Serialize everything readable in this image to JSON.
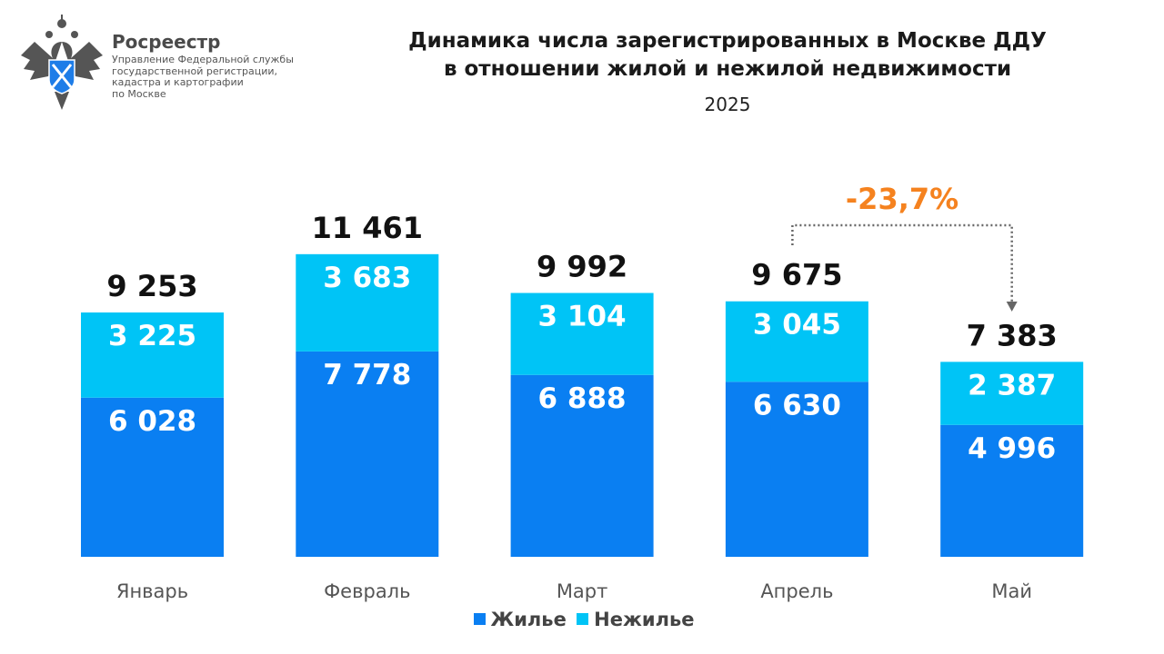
{
  "header": {
    "brand": "Росреестр",
    "subtitle_lines": [
      "Управление Федеральной службы",
      "государственной регистрации,",
      "кадастра и картографии",
      "по Москве"
    ],
    "logo_icon": "double-headed-eagle-emblem"
  },
  "chart_data": {
    "type": "bar",
    "stacked": true,
    "title_lines": [
      "Динамика числа зарегистрированных в Москве ДДУ",
      "в отношении жилой и нежилой недвижимости"
    ],
    "subtitle": "2025",
    "categories": [
      "Январь",
      "Февраль",
      "Март",
      "Апрель",
      "Май"
    ],
    "series": [
      {
        "name": "Жилье",
        "values": [
          6028,
          7778,
          6888,
          6630,
          4996
        ],
        "labels": [
          "6 028",
          "7 778",
          "6 888",
          "6 630",
          "4 996"
        ],
        "color": "#0a7ff2"
      },
      {
        "name": "Нежилье",
        "values": [
          3225,
          3683,
          3104,
          3045,
          2387
        ],
        "labels": [
          "3 225",
          "3 683",
          "3 104",
          "3 045",
          "2 387"
        ],
        "color": "#00c4f6"
      }
    ],
    "totals": [
      9253,
      11461,
      9992,
      9675,
      7383
    ],
    "total_labels": [
      "9 253",
      "11 461",
      "9 992",
      "9 675",
      "7 383"
    ],
    "annotation": {
      "text": "-23,7%",
      "from": "Апрель",
      "to": "Май",
      "color": "#f5821f"
    },
    "legend_position": "bottom",
    "grid": false
  }
}
